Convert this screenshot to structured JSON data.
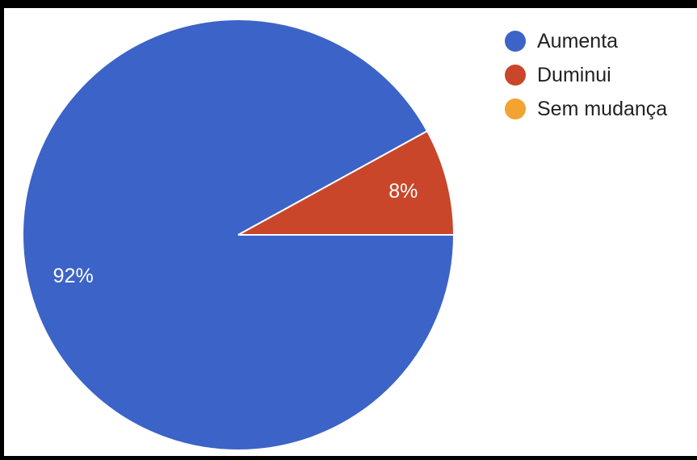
{
  "chart_data": {
    "type": "pie",
    "categories": [
      "Aumenta",
      "Duminui",
      "Sem mudança"
    ],
    "values": [
      92,
      8,
      0
    ],
    "data_labels": [
      "92%",
      "8%",
      ""
    ],
    "colors": [
      "#3c63c7",
      "#c9462a",
      "#f2a331"
    ],
    "title": "",
    "legend_position": "top-right"
  }
}
